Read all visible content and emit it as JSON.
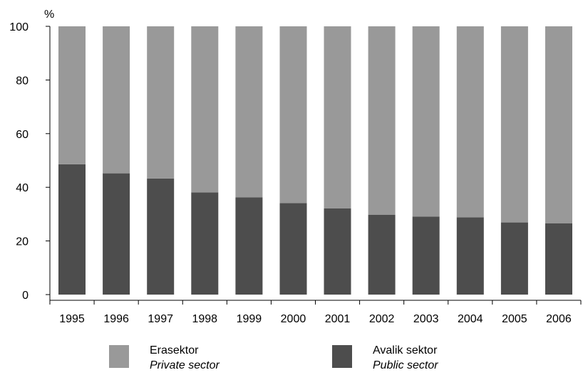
{
  "chart_data": {
    "type": "bar",
    "stacked": true,
    "unit_label": "%",
    "categories": [
      "1995",
      "1996",
      "1997",
      "1998",
      "1999",
      "2000",
      "2001",
      "2002",
      "2003",
      "2004",
      "2005",
      "2006"
    ],
    "series": [
      {
        "name": "Avalik sektor",
        "name_en": "Public sector",
        "color": "#4d4d4d",
        "values": [
          48.6,
          45.2,
          43.3,
          38.1,
          36.2,
          34.1,
          32.1,
          29.8,
          29.1,
          28.8,
          26.9,
          26.6
        ]
      },
      {
        "name": "Erasektor",
        "name_en": "Private sector",
        "color": "#999999",
        "values": [
          51.4,
          54.8,
          56.7,
          61.9,
          63.8,
          65.9,
          67.9,
          70.2,
          70.9,
          71.2,
          73.1,
          73.4
        ]
      }
    ],
    "ylim": [
      0,
      100
    ],
    "yticks": [
      0,
      20,
      40,
      60,
      80,
      100
    ],
    "grid": false,
    "legend_placement": "bottom"
  },
  "legend": [
    {
      "label": "Erasektor",
      "sublabel": "Private sector",
      "color": "#999999"
    },
    {
      "label": "Avalik sektor",
      "sublabel": "Public sector",
      "color": "#4d4d4d"
    }
  ]
}
